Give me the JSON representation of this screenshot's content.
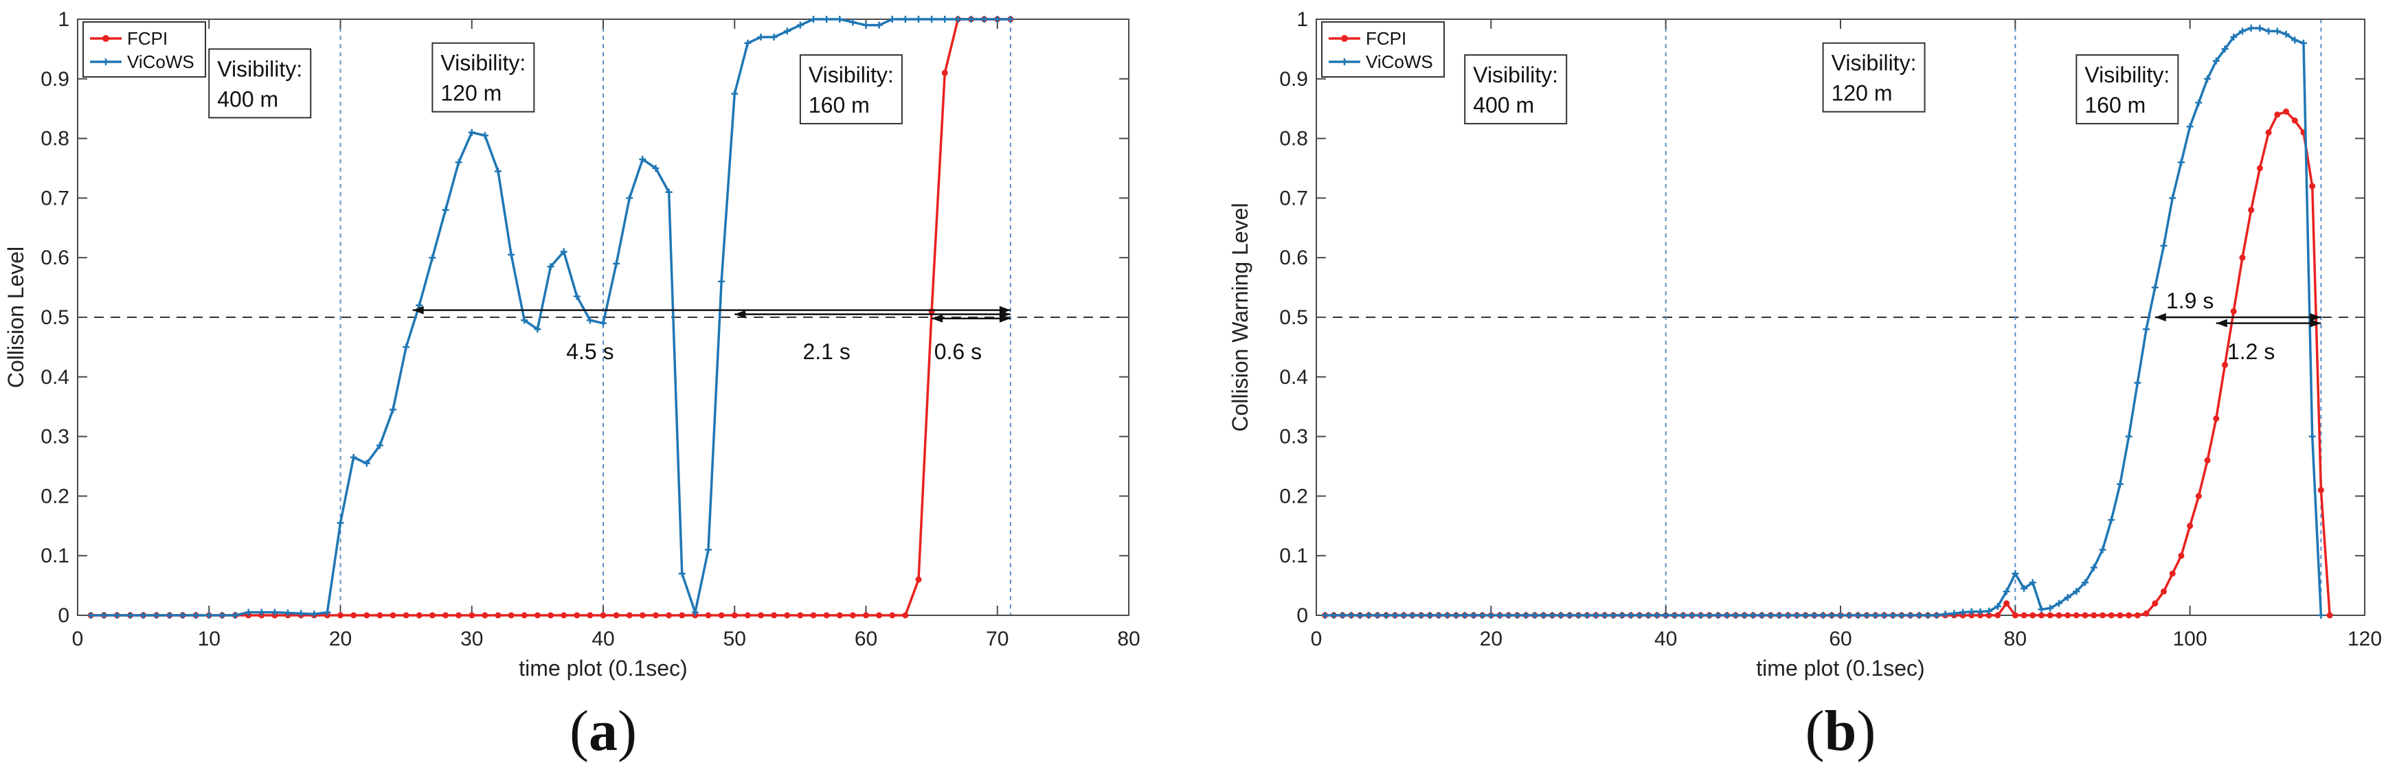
{
  "chart_data": [
    {
      "type": "line",
      "panel_label": "(a)",
      "panel_letter": "a",
      "xlabel": "time plot (0.1sec)",
      "ylabel": "Collision Level",
      "xlim": [
        0,
        80
      ],
      "ylim": [
        0,
        1
      ],
      "xticks": [
        0,
        10,
        20,
        30,
        40,
        50,
        60,
        70,
        80
      ],
      "yticks": [
        0,
        0.1,
        0.2,
        0.3,
        0.4,
        0.5,
        0.6,
        0.7,
        0.8,
        0.9,
        1
      ],
      "legend": {
        "placement": "top-left",
        "entries": [
          "FCPI",
          "ViCoWS"
        ]
      },
      "colors": {
        "FCPI": "#e8221f",
        "ViCoWS": "#1f77b4",
        "vline": "#5a8fc8",
        "hline": "#333333"
      },
      "vlines": [
        20,
        40,
        71
      ],
      "hline": 0.5,
      "boxes": [
        {
          "line1": "Visibility:",
          "line2": "400 m",
          "x": 10,
          "y": 0.95
        },
        {
          "line1": "Visibility:",
          "line2": "120 m",
          "x": 27,
          "y": 0.96
        },
        {
          "line1": "Visibility:",
          "line2": "160 m",
          "x": 55,
          "y": 0.94
        }
      ],
      "intervals": [
        {
          "label": "4.5 s",
          "x1": 25.5,
          "x2": 71,
          "y": 0.512,
          "label_x": 39,
          "label_y": 0.43
        },
        {
          "label": "2.1 s",
          "x1": 50,
          "x2": 71,
          "y": 0.505,
          "label_x": 57,
          "label_y": 0.43
        },
        {
          "label": "0.6 s",
          "x1": 65,
          "x2": 71,
          "y": 0.498,
          "label_x": 67,
          "label_y": 0.43
        }
      ],
      "series": [
        {
          "name": "FCPI",
          "x": [
            1,
            2,
            3,
            4,
            5,
            6,
            7,
            8,
            9,
            10,
            11,
            12,
            13,
            14,
            15,
            16,
            17,
            18,
            19,
            20,
            21,
            22,
            23,
            24,
            25,
            26,
            27,
            28,
            29,
            30,
            31,
            32,
            33,
            34,
            35,
            36,
            37,
            38,
            39,
            40,
            41,
            42,
            43,
            44,
            45,
            46,
            47,
            48,
            49,
            50,
            51,
            52,
            53,
            54,
            55,
            56,
            57,
            58,
            59,
            60,
            61,
            62,
            63,
            64,
            65,
            66,
            67,
            68,
            69,
            70,
            71
          ],
          "y": [
            0,
            0,
            0,
            0,
            0,
            0,
            0,
            0,
            0,
            0,
            0,
            0,
            0,
            0,
            0,
            0,
            0,
            0,
            0,
            0,
            0,
            0,
            0,
            0,
            0,
            0,
            0,
            0,
            0,
            0,
            0,
            0,
            0,
            0,
            0,
            0,
            0,
            0,
            0,
            0,
            0,
            0,
            0,
            0,
            0,
            0,
            0,
            0,
            0,
            0,
            0,
            0,
            0,
            0,
            0,
            0,
            0,
            0,
            0,
            0,
            0,
            0,
            0,
            0.06,
            0.51,
            0.91,
            1,
            1,
            1,
            1,
            1
          ]
        },
        {
          "name": "ViCoWS",
          "x": [
            1,
            2,
            3,
            4,
            5,
            6,
            7,
            8,
            9,
            10,
            11,
            12,
            13,
            14,
            15,
            16,
            17,
            18,
            19,
            20,
            21,
            22,
            23,
            24,
            25,
            26,
            27,
            28,
            29,
            30,
            31,
            32,
            33,
            34,
            35,
            36,
            37,
            38,
            39,
            40,
            41,
            42,
            43,
            44,
            45,
            46,
            47,
            48,
            49,
            50,
            51,
            52,
            53,
            54,
            55,
            56,
            57,
            58,
            59,
            60,
            61,
            62,
            63,
            64,
            65,
            66,
            67,
            68,
            69,
            70,
            71
          ],
          "y": [
            0,
            0,
            0,
            0,
            0,
            0,
            0,
            0,
            0,
            0,
            0,
            0,
            0.005,
            0.005,
            0.005,
            0.004,
            0.003,
            0.002,
            0.005,
            0.155,
            0.265,
            0.255,
            0.285,
            0.345,
            0.45,
            0.52,
            0.6,
            0.68,
            0.76,
            0.81,
            0.805,
            0.745,
            0.605,
            0.495,
            0.48,
            0.585,
            0.61,
            0.535,
            0.495,
            0.49,
            0.59,
            0.7,
            0.765,
            0.75,
            0.71,
            0.07,
            0.005,
            0.11,
            0.56,
            0.875,
            0.96,
            0.97,
            0.97,
            0.98,
            0.99,
            1,
            1,
            1,
            0.995,
            0.99,
            0.99,
            1,
            1,
            1,
            1,
            1,
            1,
            1,
            1,
            1,
            1
          ]
        }
      ]
    },
    {
      "type": "line",
      "panel_label": "(b)",
      "panel_letter": "b",
      "xlabel": "time plot (0.1sec)",
      "ylabel": "Collision Warning Level",
      "xlim": [
        0,
        120
      ],
      "ylim": [
        0,
        1
      ],
      "xticks": [
        0,
        20,
        40,
        60,
        80,
        100,
        120
      ],
      "yticks": [
        0,
        0.1,
        0.2,
        0.3,
        0.4,
        0.5,
        0.6,
        0.7,
        0.8,
        0.9,
        1
      ],
      "legend": {
        "placement": "top-left",
        "entries": [
          "FCPI",
          "ViCoWS"
        ]
      },
      "colors": {
        "FCPI": "#e8221f",
        "ViCoWS": "#1f77b4",
        "vline": "#5a8fc8",
        "hline": "#333333"
      },
      "vlines": [
        40,
        80,
        115
      ],
      "hline": 0.5,
      "boxes": [
        {
          "line1": "Visibility:",
          "line2": "400 m",
          "x": 17,
          "y": 0.94
        },
        {
          "line1": "Visibility:",
          "line2": "120 m",
          "x": 58,
          "y": 0.96
        },
        {
          "line1": "Visibility:",
          "line2": "160 m",
          "x": 87,
          "y": 0.94
        }
      ],
      "intervals": [
        {
          "label": "1.9 s",
          "x1": 96,
          "x2": 115,
          "y": 0.5,
          "label_x": 100,
          "label_y": 0.515
        },
        {
          "label": "1.2 s",
          "x1": 103,
          "x2": 115,
          "y": 0.49,
          "label_x": 107,
          "label_y": 0.43
        }
      ],
      "series": [
        {
          "name": "FCPI",
          "x": [
            1,
            2,
            3,
            4,
            5,
            6,
            7,
            8,
            9,
            10,
            11,
            12,
            13,
            14,
            15,
            16,
            17,
            18,
            19,
            20,
            21,
            22,
            23,
            24,
            25,
            26,
            27,
            28,
            29,
            30,
            31,
            32,
            33,
            34,
            35,
            36,
            37,
            38,
            39,
            40,
            41,
            42,
            43,
            44,
            45,
            46,
            47,
            48,
            49,
            50,
            51,
            52,
            53,
            54,
            55,
            56,
            57,
            58,
            59,
            60,
            61,
            62,
            63,
            64,
            65,
            66,
            67,
            68,
            69,
            70,
            71,
            72,
            73,
            74,
            75,
            76,
            77,
            78,
            79,
            80,
            81,
            82,
            83,
            84,
            85,
            86,
            87,
            88,
            89,
            90,
            91,
            92,
            93,
            94,
            95,
            96,
            97,
            98,
            99,
            100,
            101,
            102,
            103,
            104,
            105,
            106,
            107,
            108,
            109,
            110,
            111,
            112,
            113,
            114,
            115,
            116
          ],
          "y": [
            0,
            0,
            0,
            0,
            0,
            0,
            0,
            0,
            0,
            0,
            0,
            0,
            0,
            0,
            0,
            0,
            0,
            0,
            0,
            0,
            0,
            0,
            0,
            0,
            0,
            0,
            0,
            0,
            0,
            0,
            0,
            0,
            0,
            0,
            0,
            0,
            0,
            0,
            0,
            0,
            0,
            0,
            0,
            0,
            0,
            0,
            0,
            0,
            0,
            0,
            0,
            0,
            0,
            0,
            0,
            0,
            0,
            0,
            0,
            0,
            0,
            0,
            0,
            0,
            0,
            0,
            0,
            0,
            0,
            0,
            0,
            0,
            0,
            0,
            0,
            0,
            0,
            0,
            0.02,
            0,
            0,
            0,
            0,
            0,
            0,
            0,
            0,
            0,
            0,
            0,
            0,
            0,
            0,
            0,
            0.003,
            0.02,
            0.04,
            0.07,
            0.1,
            0.15,
            0.2,
            0.26,
            0.33,
            0.42,
            0.51,
            0.6,
            0.68,
            0.75,
            0.81,
            0.84,
            0.845,
            0.83,
            0.81,
            0.72,
            0.21,
            0
          ]
        },
        {
          "name": "ViCoWS",
          "x": [
            1,
            2,
            3,
            4,
            5,
            6,
            7,
            8,
            9,
            10,
            11,
            12,
            13,
            14,
            15,
            16,
            17,
            18,
            19,
            20,
            21,
            22,
            23,
            24,
            25,
            26,
            27,
            28,
            29,
            30,
            31,
            32,
            33,
            34,
            35,
            36,
            37,
            38,
            39,
            40,
            41,
            42,
            43,
            44,
            45,
            46,
            47,
            48,
            49,
            50,
            51,
            52,
            53,
            54,
            55,
            56,
            57,
            58,
            59,
            60,
            61,
            62,
            63,
            64,
            65,
            66,
            67,
            68,
            69,
            70,
            71,
            72,
            73,
            74,
            75,
            76,
            77,
            78,
            79,
            80,
            81,
            82,
            83,
            84,
            85,
            86,
            87,
            88,
            89,
            90,
            91,
            92,
            93,
            94,
            95,
            96,
            97,
            98,
            99,
            100,
            101,
            102,
            103,
            104,
            105,
            106,
            107,
            108,
            109,
            110,
            111,
            112,
            113,
            114,
            115
          ],
          "y": [
            0,
            0,
            0,
            0,
            0,
            0,
            0,
            0,
            0,
            0,
            0,
            0,
            0,
            0,
            0,
            0,
            0,
            0,
            0,
            0,
            0,
            0,
            0,
            0,
            0,
            0,
            0,
            0,
            0,
            0,
            0,
            0,
            0,
            0,
            0,
            0,
            0,
            0,
            0,
            0,
            0,
            0,
            0,
            0,
            0,
            0,
            0,
            0,
            0,
            0,
            0,
            0,
            0,
            0,
            0,
            0,
            0,
            0,
            0,
            0,
            0,
            0,
            0,
            0,
            0,
            0,
            0,
            0,
            0,
            0,
            0,
            0.002,
            0.003,
            0.005,
            0.006,
            0.006,
            0.007,
            0.015,
            0.04,
            0.07,
            0.045,
            0.055,
            0.01,
            0.012,
            0.02,
            0.03,
            0.04,
            0.055,
            0.08,
            0.11,
            0.16,
            0.22,
            0.3,
            0.39,
            0.48,
            0.55,
            0.62,
            0.7,
            0.76,
            0.82,
            0.86,
            0.9,
            0.93,
            0.95,
            0.97,
            0.98,
            0.985,
            0.985,
            0.98,
            0.98,
            0.975,
            0.965,
            0.96,
            0.3,
            0
          ]
        }
      ]
    }
  ]
}
